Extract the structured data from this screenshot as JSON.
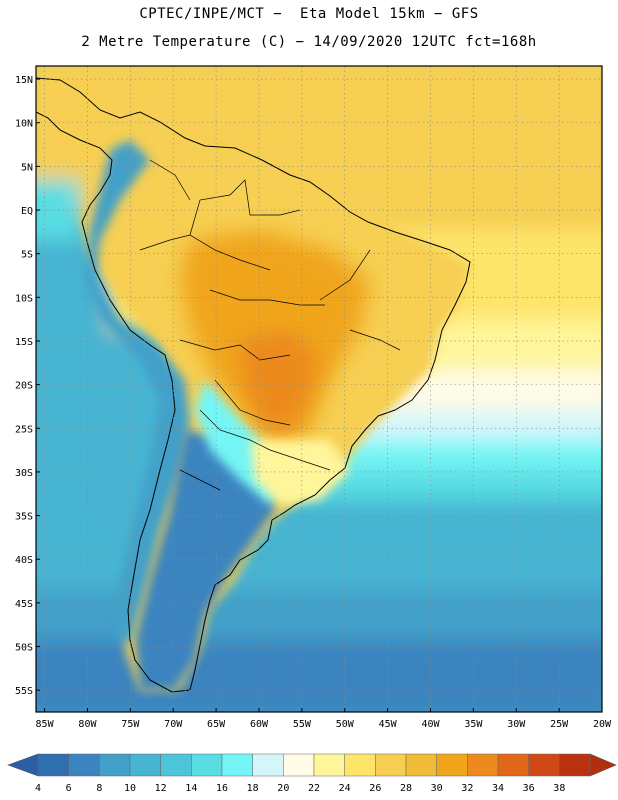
{
  "title_line1": "CPTEC/INPE/MCT −  Eta Model 15km − GFS",
  "title_line2": "2 Metre Temperature (C) − 14/09/2020 12UTC fct=168h",
  "map": {
    "lat_labels": [
      "15N",
      "10N",
      "5N",
      "EQ",
      "5S",
      "10S",
      "15S",
      "20S",
      "25S",
      "30S",
      "35S",
      "40S",
      "45S",
      "50S",
      "55S"
    ],
    "lon_labels": [
      "85W",
      "80W",
      "75W",
      "70W",
      "65W",
      "60W",
      "55W",
      "50W",
      "45W",
      "40W",
      "35W",
      "30W",
      "25W",
      "20W"
    ],
    "lat_range": [
      -57.5,
      16.5
    ],
    "lon_range": [
      -86,
      -20
    ]
  },
  "colorbar": {
    "values": [
      "4",
      "6",
      "8",
      "10",
      "12",
      "14",
      "16",
      "18",
      "20",
      "22",
      "24",
      "26",
      "28",
      "30",
      "32",
      "34",
      "36",
      "38"
    ],
    "colors": [
      "#2f6fb0",
      "#3b84bf",
      "#42a0c9",
      "#47b4d2",
      "#4cc5d8",
      "#58dde3",
      "#74f5f5",
      "#d4f6fb",
      "#fffbe6",
      "#fff59a",
      "#fde56a",
      "#f6cf52",
      "#f0bb37",
      "#f0a51a",
      "#ec8a1f",
      "#e0661a",
      "#cf4816",
      "#b8320f"
    ],
    "low_color": "#2b5fa3",
    "high_color": "#b0300e"
  }
}
